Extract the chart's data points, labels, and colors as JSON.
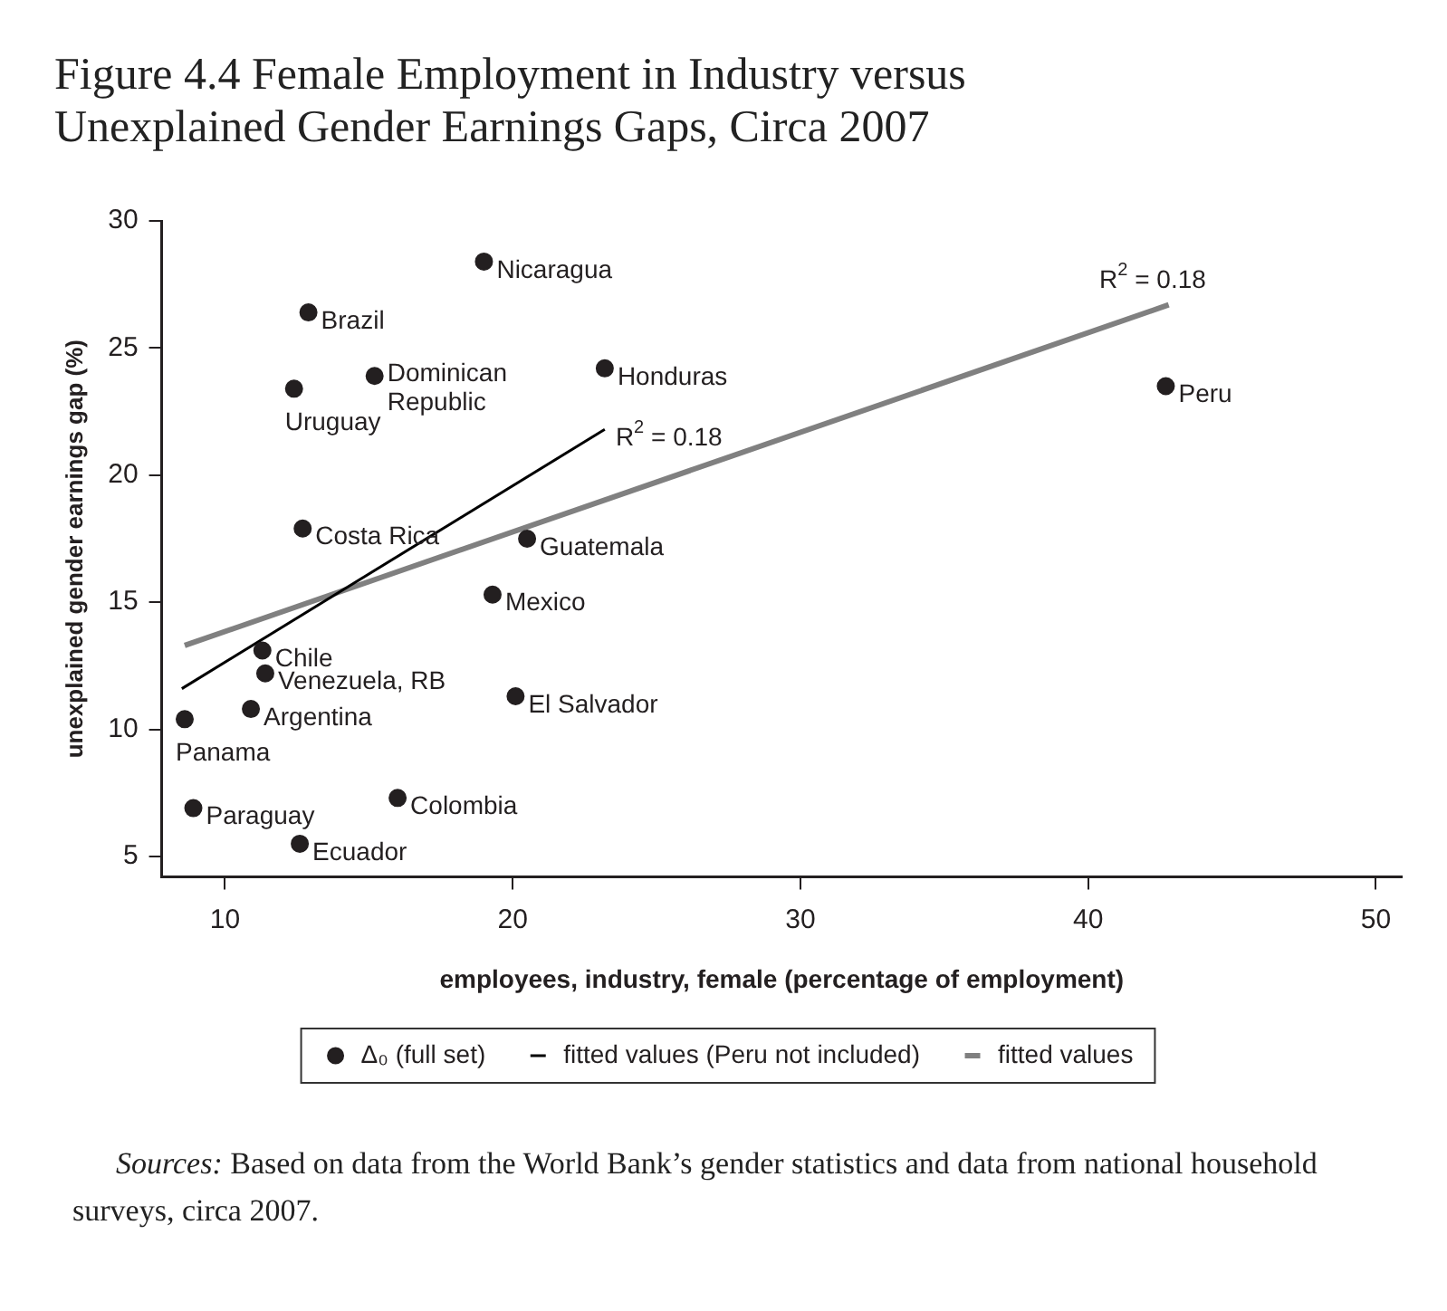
{
  "chart_data": {
    "type": "scatter",
    "title": "Figure 4.4 Female Employment in Industry versus Unexplained Gender Earnings Gaps, Circa 2007",
    "xlabel": "employees, industry, female (percentage of employment)",
    "ylabel": "unexplained gender earnings gap (%)",
    "xlim": [
      7.8,
      50.9
    ],
    "ylim": [
      4.2,
      30
    ],
    "xticks": [
      10,
      20,
      30,
      40,
      50
    ],
    "yticks": [
      5,
      10,
      15,
      20,
      25,
      30
    ],
    "grid": false,
    "legend": "bottom",
    "line_style": "solid",
    "series": [
      {
        "name": "Δ₀ (full set)",
        "marker": "circle",
        "color": "#231f20",
        "x": [
          19.0,
          12.9,
          15.2,
          12.4,
          23.2,
          12.7,
          20.5,
          19.3,
          42.7,
          11.3,
          11.4,
          10.9,
          8.6,
          20.1,
          8.9,
          16.0,
          12.6
        ],
        "values": [
          28.4,
          26.4,
          23.9,
          23.4,
          24.2,
          17.9,
          17.5,
          15.3,
          23.5,
          13.1,
          12.2,
          10.8,
          10.4,
          11.3,
          6.9,
          7.3,
          5.5
        ]
      },
      {
        "name": "fitted values (Peru not included)",
        "type": "line",
        "marker": "none",
        "color": "#000000",
        "x": [
          8.5,
          23.2
        ],
        "values": [
          11.6,
          21.8
        ]
      },
      {
        "name": "fitted values",
        "type": "line",
        "marker": "none",
        "color": "#808080",
        "x": [
          8.6,
          42.8
        ],
        "values": [
          13.3,
          26.7
        ]
      }
    ],
    "annotations": [
      {
        "text": "Nicaragua",
        "x": 19.0,
        "y": 28.4
      },
      {
        "text": "Brazil",
        "x": 12.9,
        "y": 26.4
      },
      {
        "text": "Dominican Republic",
        "x": 15.2,
        "y": 23.9
      },
      {
        "text": "Uruguay",
        "x": 12.4,
        "y": 23.4
      },
      {
        "text": "Honduras",
        "x": 23.2,
        "y": 24.2
      },
      {
        "text": "Costa Rica",
        "x": 12.7,
        "y": 17.9
      },
      {
        "text": "Guatemala",
        "x": 20.5,
        "y": 17.5
      },
      {
        "text": "Mexico",
        "x": 19.3,
        "y": 15.3
      },
      {
        "text": "Peru",
        "x": 42.7,
        "y": 23.5
      },
      {
        "text": "Chile",
        "x": 11.3,
        "y": 13.1
      },
      {
        "text": "Venezuela, RB",
        "x": 11.4,
        "y": 12.2
      },
      {
        "text": "Argentina",
        "x": 10.9,
        "y": 10.8
      },
      {
        "text": "Panama",
        "x": 8.6,
        "y": 10.4
      },
      {
        "text": "El Salvador",
        "x": 20.1,
        "y": 11.3
      },
      {
        "text": "Paraguay",
        "x": 8.9,
        "y": 6.9
      },
      {
        "text": "Colombia",
        "x": 16.0,
        "y": 7.3
      },
      {
        "text": "Ecuador",
        "x": 12.6,
        "y": 5.5
      },
      {
        "text": "R$^{2}$ = 0.18",
        "x": 23.2,
        "y": 21.8
      },
      {
        "text": "R$^{2}$ = 0.18",
        "x": 42.8,
        "y": 26.7
      },
      "Sources: Based on data from the World Bank’s gender statistics and data from national household surveys, circa 2007."
    ]
  }
}
